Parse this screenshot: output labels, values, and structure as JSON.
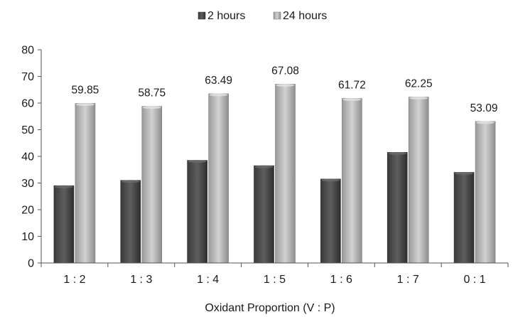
{
  "chart_data": {
    "type": "bar",
    "categories": [
      "1 : 2",
      "1 : 3",
      "1 : 4",
      "1 : 5",
      "1 : 6",
      "1 : 7",
      "0 : 1"
    ],
    "series": [
      {
        "name": "2 hours",
        "values": [
          29,
          31,
          38.5,
          36.5,
          31.5,
          41.5,
          34
        ],
        "color": "#4a4a4a",
        "labels": [
          "",
          "",
          "",
          "",
          "",
          "",
          ""
        ]
      },
      {
        "name": "24 hours",
        "values": [
          59.85,
          58.75,
          63.49,
          67.08,
          61.72,
          62.25,
          53.09
        ],
        "color": "#b8b8b8",
        "labels": [
          "59.85",
          "58.75",
          "63.49",
          "67.08",
          "61.72",
          "62.25",
          "53.09"
        ]
      }
    ],
    "yticks": [
      "0",
      "10",
      "20",
      "30",
      "40",
      "50",
      "60",
      "70",
      "80"
    ],
    "ylim": [
      0,
      80
    ],
    "xlabel": "Oxidant Proportion (V : P)",
    "ylabel": "",
    "title": "",
    "legend_position": "top-center",
    "grid": false
  }
}
